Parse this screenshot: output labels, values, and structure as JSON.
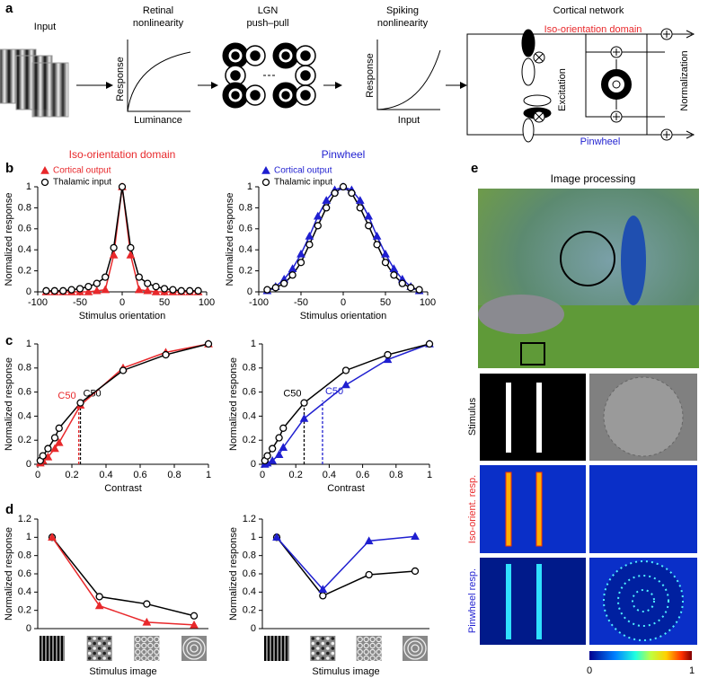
{
  "panel_labels": [
    "a",
    "b",
    "c",
    "d",
    "e"
  ],
  "panel_a": {
    "input": "Input",
    "retinal": [
      "Retinal",
      "nonlinearity"
    ],
    "retinal_y": "Response",
    "retinal_x": "Luminance",
    "lgn": [
      "LGN",
      "push–pull"
    ],
    "spiking": [
      "Spiking",
      "nonlinearity"
    ],
    "spiking_y": "Response",
    "spiking_x": "Input",
    "cortical": "Cortical network",
    "iso": "Iso-orientation domain",
    "excitation": "Excitation",
    "normalization": "Normalization",
    "pinwheel": "Pinwheel"
  },
  "panel_e": {
    "title": "Image processing",
    "rows": [
      "Stimulus",
      "Iso-orient. resp.",
      "Pinwheel resp."
    ],
    "colorbar_ticks": [
      0,
      1
    ]
  },
  "chart_data": [
    {
      "type": "line",
      "title": "Iso-orientation domain",
      "title_color": "#e8282b",
      "x": [
        -90,
        -80,
        -70,
        -60,
        -50,
        -40,
        -30,
        -20,
        -10,
        0,
        10,
        20,
        30,
        40,
        50,
        60,
        70,
        80,
        90
      ],
      "series": [
        {
          "name": "Cortical output",
          "color": "#e8282b",
          "marker": "triangle",
          "values": [
            0,
            0,
            0,
            0,
            0,
            0,
            0.01,
            0.02,
            0.35,
            1,
            0.35,
            0.02,
            0.01,
            0,
            0,
            0,
            0,
            0,
            0
          ]
        },
        {
          "name": "Thalamic input",
          "color": "#000000",
          "marker": "circle",
          "values": [
            0.01,
            0.01,
            0.01,
            0.02,
            0.03,
            0.05,
            0.08,
            0.14,
            0.42,
            1,
            0.42,
            0.14,
            0.08,
            0.05,
            0.03,
            0.02,
            0.01,
            0.01,
            0.01
          ]
        }
      ],
      "xlim": [
        -100,
        100
      ],
      "xticks": [
        -100,
        -50,
        0,
        50,
        100
      ],
      "ylim": [
        0,
        1
      ],
      "yticks": [
        0,
        0.2,
        0.4,
        0.6,
        0.8,
        1
      ],
      "xlabel": "Stimulus orientation",
      "ylabel": "Normalized response",
      "legend": "upper left"
    },
    {
      "type": "line",
      "title": "Pinwheel",
      "title_color": "#1f1fd0",
      "x": [
        -90,
        -80,
        -70,
        -60,
        -50,
        -40,
        -30,
        -20,
        -10,
        0,
        10,
        20,
        30,
        40,
        50,
        60,
        70,
        80,
        90
      ],
      "series": [
        {
          "name": "Cortical output",
          "color": "#1f1fd0",
          "marker": "triangle",
          "values": [
            0.01,
            0.05,
            0.12,
            0.22,
            0.36,
            0.53,
            0.72,
            0.87,
            0.97,
            1,
            0.97,
            0.87,
            0.72,
            0.53,
            0.36,
            0.22,
            0.12,
            0.05,
            0.01
          ]
        },
        {
          "name": "Thalamic input",
          "color": "#000000",
          "marker": "circle",
          "values": [
            0.02,
            0.04,
            0.08,
            0.16,
            0.28,
            0.45,
            0.63,
            0.8,
            0.94,
            1,
            0.94,
            0.8,
            0.63,
            0.45,
            0.28,
            0.16,
            0.08,
            0.04,
            0.02
          ]
        }
      ],
      "xlim": [
        -100,
        100
      ],
      "xticks": [
        -100,
        -50,
        0,
        50,
        100
      ],
      "ylim": [
        0,
        1
      ],
      "yticks": [
        0,
        0.2,
        0.4,
        0.6,
        0.8,
        1
      ],
      "xlabel": "Stimulus orientation",
      "ylabel": "Normalized response",
      "legend": "upper left"
    },
    {
      "type": "line",
      "x": [
        0.015,
        0.03,
        0.06,
        0.1,
        0.125,
        0.25,
        0.5,
        0.75,
        1
      ],
      "series": [
        {
          "color": "#e8282b",
          "marker": "triangle",
          "values": [
            0.01,
            0.03,
            0.06,
            0.13,
            0.18,
            0.49,
            0.8,
            0.93,
            1
          ]
        },
        {
          "color": "#000000",
          "marker": "circle",
          "values": [
            0.03,
            0.07,
            0.13,
            0.22,
            0.3,
            0.51,
            0.78,
            0.91,
            1
          ]
        }
      ],
      "annotations": [
        {
          "text": "C50",
          "x": 0.24,
          "y": 0.49,
          "color": "#e8282b"
        },
        {
          "text": "C50",
          "x": 0.25,
          "y": 0.51,
          "color": "#000000"
        }
      ],
      "xlim": [
        0,
        1
      ],
      "xticks": [
        0,
        0.2,
        0.4,
        0.6,
        0.8,
        1
      ],
      "ylim": [
        0,
        1
      ],
      "yticks": [
        0,
        0.2,
        0.4,
        0.6,
        0.8,
        1
      ],
      "xlabel": "Contrast",
      "ylabel": "Normalized response"
    },
    {
      "type": "line",
      "x": [
        0.015,
        0.03,
        0.06,
        0.1,
        0.125,
        0.25,
        0.5,
        0.75,
        1
      ],
      "series": [
        {
          "color": "#1f1fd0",
          "marker": "triangle",
          "values": [
            0,
            0.01,
            0.03,
            0.08,
            0.14,
            0.38,
            0.66,
            0.87,
            1
          ]
        },
        {
          "color": "#000000",
          "marker": "circle",
          "values": [
            0.03,
            0.07,
            0.13,
            0.22,
            0.3,
            0.51,
            0.78,
            0.91,
            1
          ]
        }
      ],
      "annotations": [
        {
          "text": "C50",
          "x": 0.25,
          "y": 0.51,
          "color": "#000000"
        },
        {
          "text": "C50",
          "x": 0.36,
          "y": 0.53,
          "color": "#1f1fd0"
        }
      ],
      "xlim": [
        0,
        1
      ],
      "xticks": [
        0,
        0.2,
        0.4,
        0.6,
        0.8,
        1
      ],
      "ylim": [
        0,
        1
      ],
      "yticks": [
        0,
        0.2,
        0.4,
        0.6,
        0.8,
        1
      ],
      "xlabel": "Contrast",
      "ylabel": "Normalized response"
    },
    {
      "type": "line",
      "categories": [
        null,
        null,
        null,
        null
      ],
      "series": [
        {
          "color": "#000000",
          "marker": "circle",
          "values": [
            1,
            0.35,
            0.27,
            0.14
          ]
        },
        {
          "color": "#e8282b",
          "marker": "triangle",
          "values": [
            1,
            0.25,
            0.07,
            0.04
          ]
        }
      ],
      "ylim": [
        0,
        1.2
      ],
      "yticks": [
        0,
        0.2,
        0.4,
        0.6,
        0.8,
        1,
        1.2
      ],
      "xlabel": "Stimulus image",
      "ylabel": "Normalized response"
    },
    {
      "type": "line",
      "categories": [
        null,
        null,
        null,
        null
      ],
      "series": [
        {
          "color": "#000000",
          "marker": "circle",
          "values": [
            1,
            0.36,
            0.59,
            0.63
          ]
        },
        {
          "color": "#1f1fd0",
          "marker": "triangle",
          "values": [
            1,
            0.43,
            0.96,
            1.01
          ]
        }
      ],
      "ylim": [
        0,
        1.2
      ],
      "yticks": [
        0,
        0.2,
        0.4,
        0.6,
        0.8,
        1,
        1.2
      ],
      "xlabel": "Stimulus image",
      "ylabel": "Normalized response"
    }
  ]
}
